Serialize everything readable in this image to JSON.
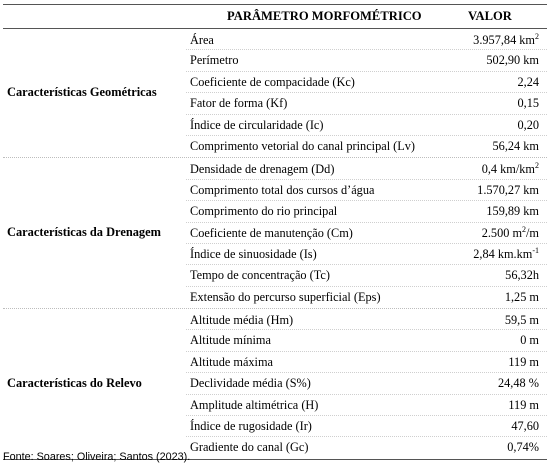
{
  "header": {
    "param_label": "PARÂMETRO MORFOMÉTRICO",
    "value_label": "VALOR"
  },
  "groups": [
    {
      "category": "Características Geométricas",
      "rows": [
        {
          "param": "Área",
          "value": "3.957,84 km",
          "sup": "2"
        },
        {
          "param": "Perímetro",
          "value": "502,90 km",
          "sup": ""
        },
        {
          "param": "Coeficiente de compacidade (Kc)",
          "value": "2,24",
          "sup": ""
        },
        {
          "param": "Fator de forma (Kf)",
          "value": "0,15",
          "sup": ""
        },
        {
          "param": "Índice de circularidade (Ic)",
          "value": "0,20",
          "sup": ""
        },
        {
          "param": "Comprimento vetorial do canal principal (Lv)",
          "value": "56,24 km",
          "sup": ""
        }
      ]
    },
    {
      "category": "Características da Drenagem",
      "rows": [
        {
          "param": "Densidade de drenagem (Dd)",
          "value": "0,4 km/km",
          "sup": "2"
        },
        {
          "param": "Comprimento total dos cursos d’água",
          "value": "1.570,27 km",
          "sup": ""
        },
        {
          "param": "Comprimento do rio principal",
          "value": "159,89 km",
          "sup": ""
        },
        {
          "param": "Coeficiente de manutenção (Cm)",
          "value": "2.500 m",
          "sup": "2",
          "suffix": "/m"
        },
        {
          "param": "Índice de sinuosidade (Is)",
          "value": "2,84 km.km",
          "sup": "-1"
        },
        {
          "param": "Tempo de concentração (Tc)",
          "value": "56,32h",
          "sup": ""
        },
        {
          "param": "Extensão do percurso superficial (Eps)",
          "value": "1,25 m",
          "sup": ""
        }
      ]
    },
    {
      "category": "Características do Relevo",
      "rows": [
        {
          "param": "Altitude média (Hm)",
          "value": "59,5 m",
          "sup": ""
        },
        {
          "param": "Altitude mínima",
          "value": "0 m",
          "sup": ""
        },
        {
          "param": "Altitude máxima",
          "value": "119 m",
          "sup": ""
        },
        {
          "param": "Declividade média (S%)",
          "value": "24,48 %",
          "sup": ""
        },
        {
          "param": "Amplitude altimétrica (H)",
          "value": "119 m",
          "sup": ""
        },
        {
          "param": "Índice de rugosidade (Ir)",
          "value": "47,60",
          "sup": ""
        },
        {
          "param": "Gradiente do canal (Gc)",
          "value": "0,74%",
          "sup": ""
        }
      ]
    }
  ],
  "source": "Fonte: Soares; Oliveira; Santos (2023)."
}
